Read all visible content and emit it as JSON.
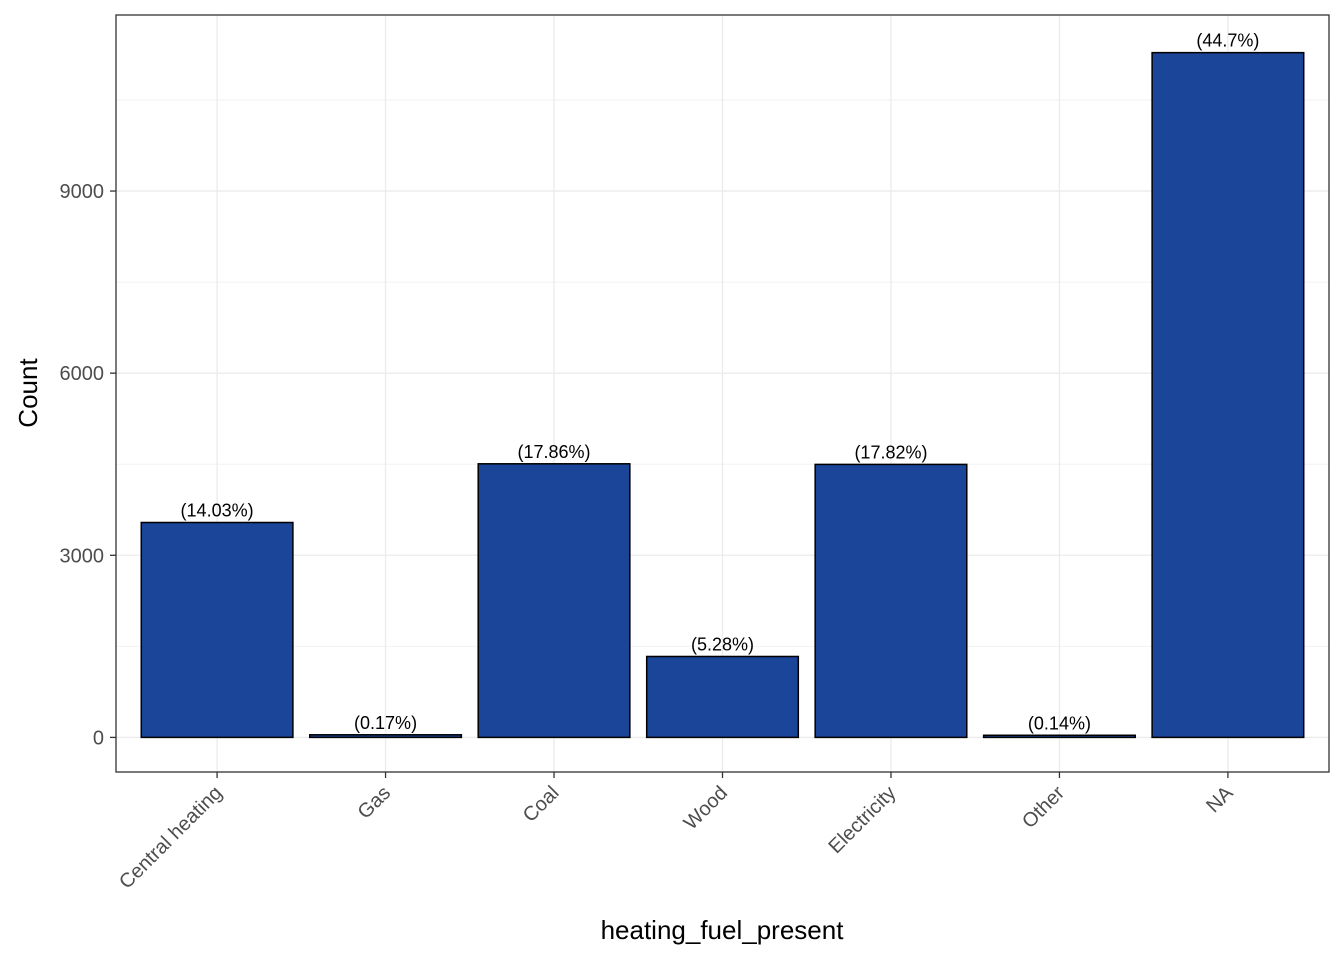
{
  "chart_data": {
    "type": "bar",
    "categories": [
      "Central heating",
      "Gas",
      "Coal",
      "Wood",
      "Electricity",
      "Other",
      "NA"
    ],
    "values": [
      3540,
      43,
      4507,
      1333,
      4497,
      35,
      11280
    ],
    "data_labels": [
      "(14.03%)",
      "(0.17%)",
      "(17.86%)",
      "(5.28%)",
      "(17.82%)",
      "(0.14%)",
      "(44.7%)"
    ],
    "xlabel": "heating_fuel_present",
    "ylabel": "Count",
    "ylim": [
      -570,
      11900
    ],
    "yticks": [
      0,
      3000,
      6000,
      9000
    ],
    "ytick_labels": [
      "0",
      "3000",
      "6000",
      "9000"
    ],
    "grid": true,
    "bar_color": "#1a4599",
    "bar_edge_color": "#000000"
  }
}
